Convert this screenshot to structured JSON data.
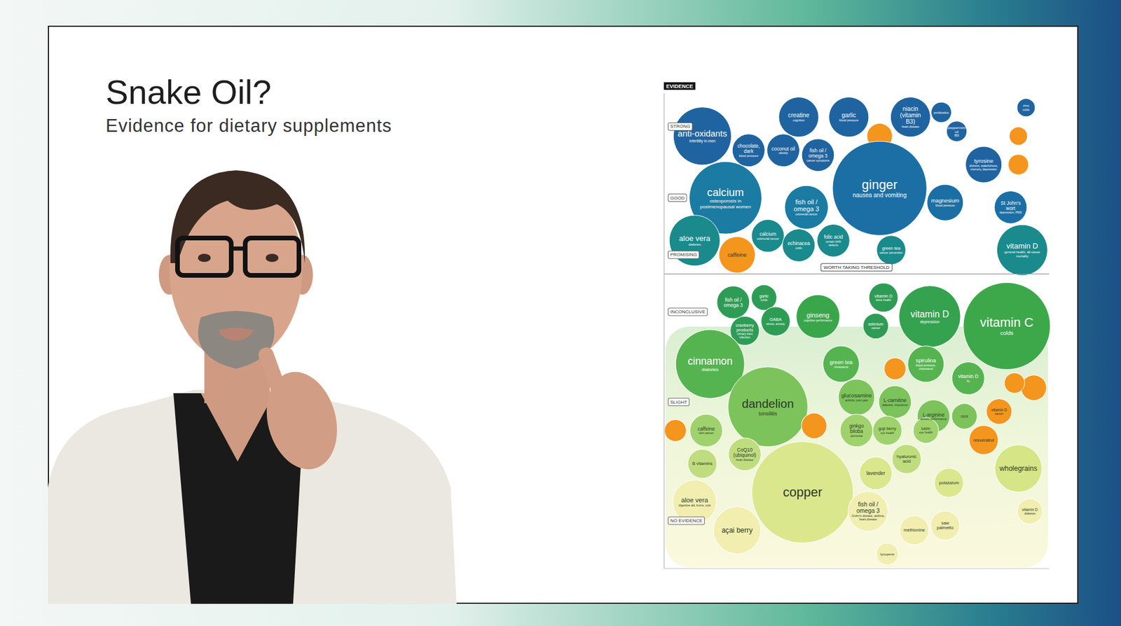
{
  "slide": {
    "title": "Snake Oil?",
    "subtitle": "Evidence for dietary supplements"
  },
  "chart_data": {
    "type": "scatter",
    "y_label": "EVIDENCE",
    "xlim": [
      0,
      100
    ],
    "ylim": [
      0,
      100
    ],
    "yticks": [
      {
        "value": 93,
        "label": "STRONG"
      },
      {
        "value": 78,
        "label": "GOOD"
      },
      {
        "value": 66,
        "label": "PROMISING"
      },
      {
        "value": 54,
        "label": "INCONCLUSIVE"
      },
      {
        "value": 35,
        "label": "SLIGHT"
      },
      {
        "value": 10,
        "label": "NO EVIDENCE"
      }
    ],
    "tick_labels": "y",
    "grid": false,
    "annotations": [
      {
        "y": 62,
        "text": "WORTH TAKING THRESHOLD"
      }
    ],
    "points": [
      {
        "label": "anti-oxidants",
        "detail": "infertility in men",
        "x": 10,
        "y": 91,
        "size": 80,
        "color": "#1f64a0"
      },
      {
        "label": "creatine",
        "detail": "cognition",
        "x": 35,
        "y": 95,
        "size": 55,
        "color": "#1f64a0"
      },
      {
        "label": "garlic",
        "detail": "blood pressure",
        "x": 48,
        "y": 95,
        "size": 55,
        "color": "#1f64a0"
      },
      {
        "label": "niacin (vitamin B3)",
        "detail": "heart disease",
        "x": 64,
        "y": 95,
        "size": 55,
        "color": "#1f64a0"
      },
      {
        "label": "probiotics",
        "detail": null,
        "x": 72,
        "y": 96,
        "size": 28,
        "color": "#1f64a0"
      },
      {
        "label": "peppermint oil",
        "detail": "IBS",
        "x": 76,
        "y": 92,
        "size": 28,
        "color": "#1f64a0"
      },
      {
        "label": "zinc",
        "detail": "colds",
        "x": 94,
        "y": 97,
        "size": 25,
        "color": "#1f64a0"
      },
      {
        "label": "chocolate, dark",
        "detail": "blood pressure",
        "x": 22,
        "y": 88,
        "size": 45,
        "color": "#1f64a0"
      },
      {
        "label": "coconut oil",
        "detail": "obesity",
        "x": 31,
        "y": 88,
        "size": 45,
        "color": "#1f64a0"
      },
      {
        "label": "fish oil / omega 3",
        "detail": "cancer symptoms",
        "x": 40,
        "y": 87,
        "size": 45,
        "color": "#1f64a0"
      },
      {
        "label": null,
        "detail": null,
        "x": 56,
        "y": 91,
        "size": 35,
        "color": "#f4951d"
      },
      {
        "label": null,
        "detail": null,
        "x": 92,
        "y": 91,
        "size": 25,
        "color": "#f4951d"
      },
      {
        "label": null,
        "detail": null,
        "x": 92,
        "y": 85,
        "size": 28,
        "color": "#f4951d"
      },
      {
        "label": "ginger",
        "detail": "nausea and vomiting",
        "x": 56,
        "y": 80,
        "size": 130,
        "color": "#1b6fa5"
      },
      {
        "label": "tyrosine",
        "detail": "distress, wakefulness, memory, depression",
        "x": 83,
        "y": 85,
        "size": 50,
        "color": "#1f64a0"
      },
      {
        "label": "calcium",
        "detail": "osteoporosis in postmenopausal women",
        "x": 16,
        "y": 78,
        "size": 100,
        "color": "#1b7ba3"
      },
      {
        "label": "fish oil / omega 3",
        "detail": "colorectal cancer",
        "x": 37,
        "y": 76,
        "size": 60,
        "color": "#1b7ba3"
      },
      {
        "label": "magnesium",
        "detail": "blood pressure",
        "x": 73,
        "y": 77,
        "size": 50,
        "color": "#1b6fa5"
      },
      {
        "label": "St John's wort",
        "detail": "depression, PMS",
        "x": 90,
        "y": 76,
        "size": 45,
        "color": "#1b6fa5"
      },
      {
        "label": "aloe vera",
        "detail": "diabetes",
        "x": 8,
        "y": 69,
        "size": 70,
        "color": "#1a8a8c"
      },
      {
        "label": "caffeine",
        "detail": null,
        "x": 19,
        "y": 66,
        "size": 50,
        "color": "#f4951d"
      },
      {
        "label": "calcium",
        "detail": "colorectal cancer",
        "x": 27,
        "y": 70,
        "size": 45,
        "color": "#1a8a8c"
      },
      {
        "label": "echinacea",
        "detail": "colds",
        "x": 35,
        "y": 68,
        "size": 45,
        "color": "#1a8a8c"
      },
      {
        "label": "folic acid",
        "detail": "certain birth defects",
        "x": 44,
        "y": 69,
        "size": 45,
        "color": "#1a8a8c"
      },
      {
        "label": "green tea",
        "detail": "cancer prevention",
        "x": 59,
        "y": 67,
        "size": 40,
        "color": "#1a8a8c"
      },
      {
        "label": "vitamin D",
        "detail": "general health, all-cause mortality",
        "x": 93,
        "y": 67,
        "size": 70,
        "color": "#1a8a8c"
      },
      {
        "label": "fish oil / omega 3",
        "detail": null,
        "x": 18,
        "y": 56,
        "size": 45,
        "color": "#2f9c56"
      },
      {
        "label": "garlic",
        "detail": "colds",
        "x": 26,
        "y": 57,
        "size": 35,
        "color": "#2f9c56"
      },
      {
        "label": "ginseng",
        "detail": "cognitive performance",
        "x": 40,
        "y": 53,
        "size": 60,
        "color": "#3aa64c"
      },
      {
        "label": "vitamin D",
        "detail": "bone health",
        "x": 57,
        "y": 57,
        "size": 40,
        "color": "#2f9c56"
      },
      {
        "label": "vitamin D",
        "detail": "depression",
        "x": 69,
        "y": 53,
        "size": 85,
        "color": "#34a24f"
      },
      {
        "label": "vitamin C",
        "detail": "colds",
        "x": 89,
        "y": 51,
        "size": 120,
        "color": "#3da84a"
      },
      {
        "label": "GABA",
        "detail": "stress, anxiety",
        "x": 29,
        "y": 52,
        "size": 40,
        "color": "#2f9c56"
      },
      {
        "label": "selenium",
        "detail": "cancer",
        "x": 55,
        "y": 51,
        "size": 35,
        "color": "#2f9c56"
      },
      {
        "label": "cranberry products",
        "detail": "urinary tract infection",
        "x": 21,
        "y": 50,
        "size": 40,
        "color": "#2f9c56"
      },
      {
        "label": "cinnamon",
        "detail": "diabetes",
        "x": 12,
        "y": 43,
        "size": 95,
        "color": "#55b450"
      },
      {
        "label": "green tea",
        "detail": "cholesterol",
        "x": 46,
        "y": 43,
        "size": 50,
        "color": "#55b450"
      },
      {
        "label": "spirulina",
        "detail": "blood pressure, cholesterol",
        "x": 68,
        "y": 43,
        "size": 50,
        "color": "#55b450"
      },
      {
        "label": "vitamin D",
        "detail": "flu",
        "x": 79,
        "y": 40,
        "size": 45,
        "color": "#55b450"
      },
      {
        "label": null,
        "detail": null,
        "x": 60,
        "y": 42,
        "size": 30,
        "color": "#f4951d"
      },
      {
        "label": null,
        "detail": null,
        "x": 96,
        "y": 38,
        "size": 35,
        "color": "#f4951d"
      },
      {
        "label": null,
        "detail": null,
        "x": 91,
        "y": 39,
        "size": 28,
        "color": "#f4951d"
      },
      {
        "label": "dandelion",
        "detail": "tonsilitis",
        "x": 27,
        "y": 34,
        "size": 110,
        "color": "#7cc35b"
      },
      {
        "label": "glucosamine",
        "detail": "arthritis, joint pain",
        "x": 50,
        "y": 36,
        "size": 50,
        "color": "#7cc35b"
      },
      {
        "label": "L-carnitine",
        "detail": "diabetes, impotence",
        "x": 60,
        "y": 35,
        "size": 45,
        "color": "#7cc35b"
      },
      {
        "label": "L-arginine",
        "detail": "athletic performance",
        "x": 70,
        "y": 32,
        "size": 45,
        "color": "#7cc35b"
      },
      {
        "label": "noni",
        "detail": null,
        "x": 78,
        "y": 32,
        "size": 35,
        "color": "#7cc35b"
      },
      {
        "label": "vitamin D",
        "detail": "cancer",
        "x": 87,
        "y": 33,
        "size": 35,
        "color": "#f4951d"
      },
      {
        "label": "resveratrol",
        "detail": null,
        "x": 83,
        "y": 27,
        "size": 40,
        "color": "#f4951d"
      },
      {
        "label": null,
        "detail": null,
        "x": 3,
        "y": 29,
        "size": 30,
        "color": "#f4951d"
      },
      {
        "label": null,
        "detail": null,
        "x": 39,
        "y": 30,
        "size": 35,
        "color": "#f4951d"
      },
      {
        "label": "caffeine",
        "detail": "skin cancer",
        "x": 11,
        "y": 29,
        "size": 45,
        "color": "#9fd26c"
      },
      {
        "label": "ginkgo biloba",
        "detail": "dementia",
        "x": 50,
        "y": 29,
        "size": 45,
        "color": "#9fd26c"
      },
      {
        "label": "goji berry",
        "detail": "eye health",
        "x": 58,
        "y": 29,
        "size": 40,
        "color": "#9fd26c"
      },
      {
        "label": "lutein",
        "detail": "eye health",
        "x": 68,
        "y": 29,
        "size": 35,
        "color": "#9fd26c"
      },
      {
        "label": "CoQ10 (ubiquinol)",
        "detail": "heart disease",
        "x": 21,
        "y": 24,
        "size": 45,
        "color": "#bfdd7e"
      },
      {
        "label": "B vitamins",
        "detail": null,
        "x": 10,
        "y": 22,
        "size": 40,
        "color": "#bfdd7e"
      },
      {
        "label": "copper",
        "detail": null,
        "x": 36,
        "y": 16,
        "size": 140,
        "color": "#dbe78c"
      },
      {
        "label": "hyaluronic acid",
        "detail": null,
        "x": 63,
        "y": 23,
        "size": 40,
        "color": "#bfdd7e"
      },
      {
        "label": "lavender",
        "detail": null,
        "x": 55,
        "y": 20,
        "size": 45,
        "color": "#dbe78c"
      },
      {
        "label": "potassium",
        "detail": null,
        "x": 74,
        "y": 18,
        "size": 40,
        "color": "#dbe78c"
      },
      {
        "label": "wholegrains",
        "detail": null,
        "x": 92,
        "y": 21,
        "size": 65,
        "color": "#d6e585"
      },
      {
        "label": "aloe vera",
        "detail": "digestive aid, burns, cuts",
        "x": 8,
        "y": 14,
        "size": 60,
        "color": "#f1eeb0"
      },
      {
        "label": "açai berry",
        "detail": null,
        "x": 19,
        "y": 8,
        "size": 65,
        "color": "#f1eeb0"
      },
      {
        "label": "fish oil / omega 3",
        "detail": "Crohn's disease, asthma, heart disease",
        "x": 53,
        "y": 12,
        "size": 55,
        "color": "#f1eeb0"
      },
      {
        "label": "methionine",
        "detail": null,
        "x": 65,
        "y": 8,
        "size": 40,
        "color": "#f1eeb0"
      },
      {
        "label": "saw palmetto",
        "detail": null,
        "x": 73,
        "y": 9,
        "size": 40,
        "color": "#f1eeb0"
      },
      {
        "label": "vitamin D",
        "detail": "diabetes",
        "x": 95,
        "y": 12,
        "size": 35,
        "color": "#f1eeb0"
      },
      {
        "label": "lycopene",
        "detail": null,
        "x": 58,
        "y": 3,
        "size": 30,
        "color": "#f1eeb0"
      }
    ]
  }
}
